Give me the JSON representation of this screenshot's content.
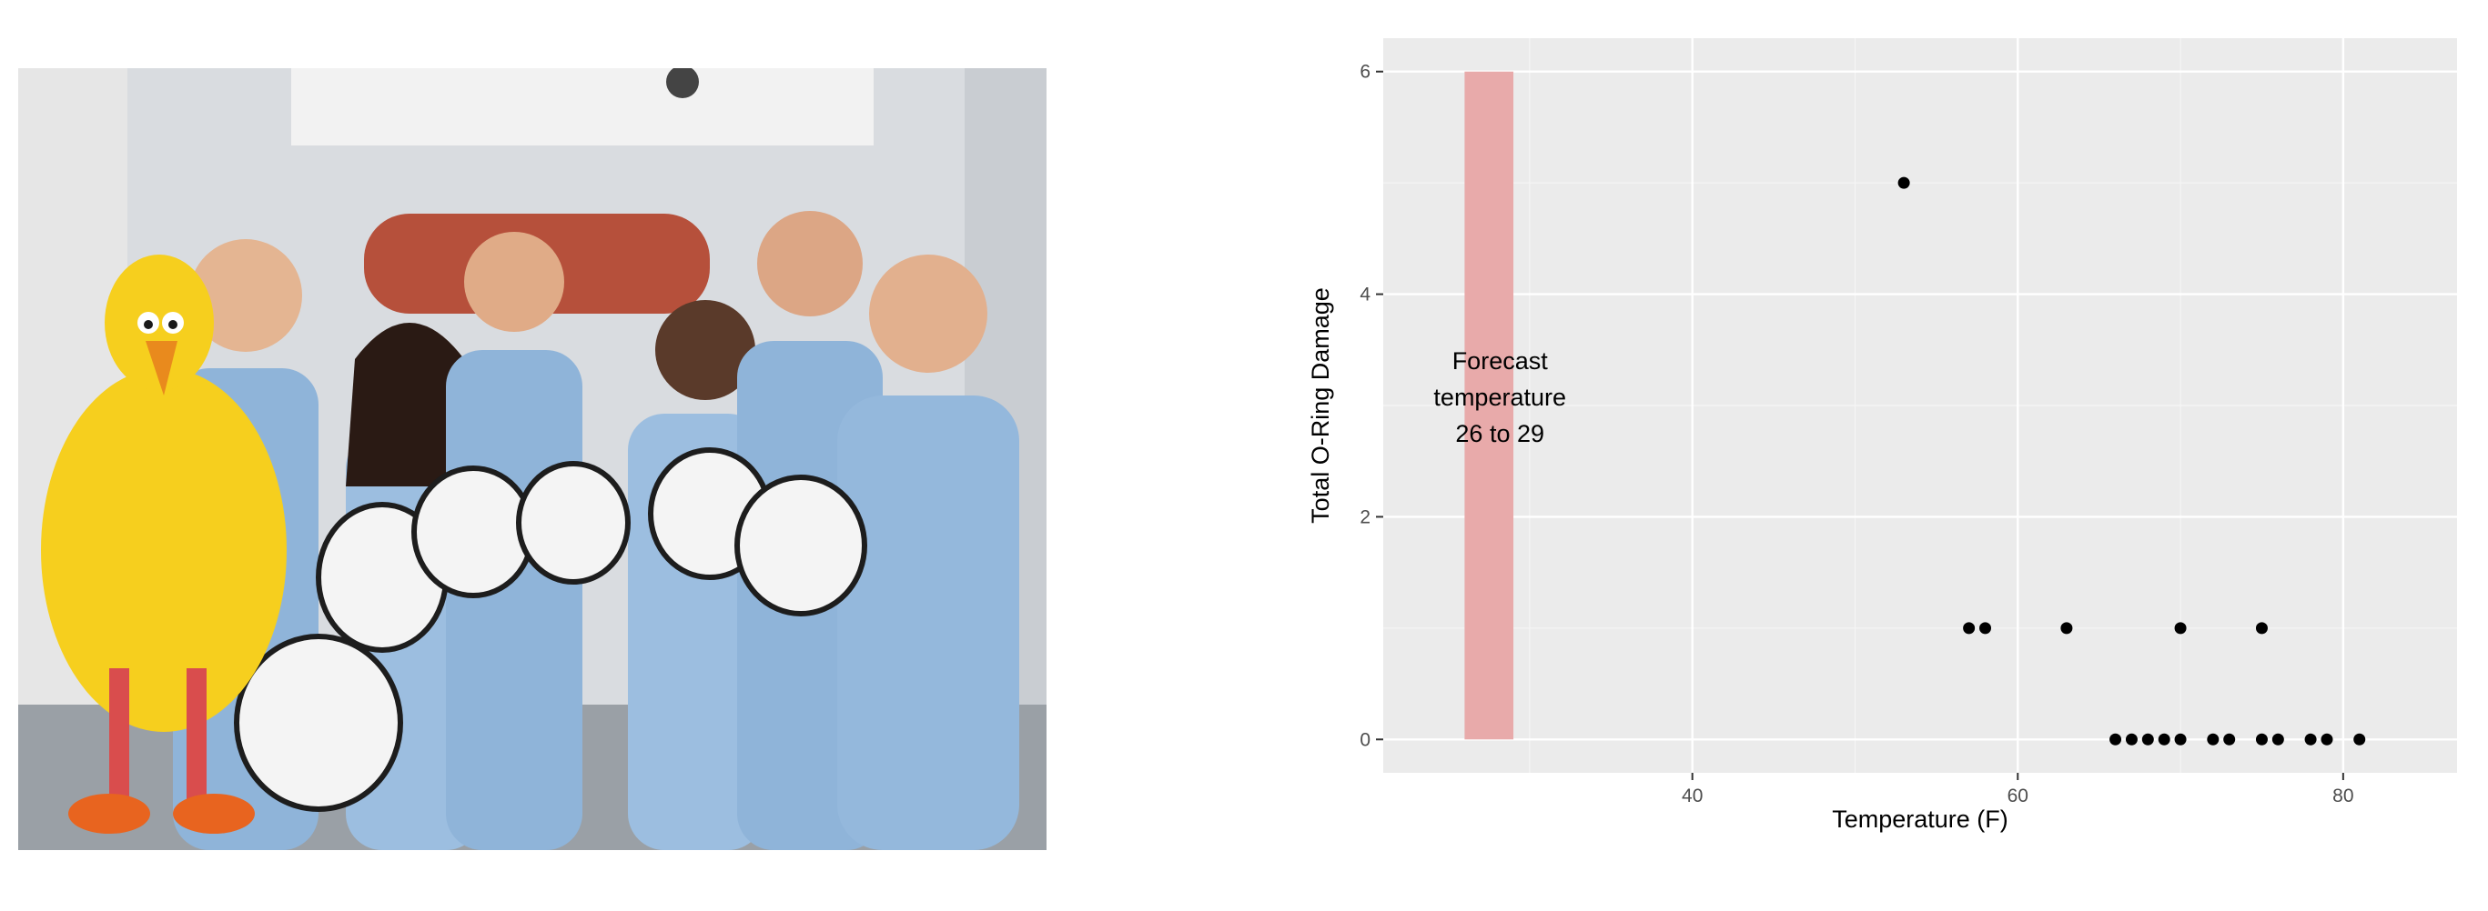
{
  "photo": {
    "description_icon": "crew-photo-illustration",
    "colors": {
      "wall": "#d9dce0",
      "suit": "#8fb4d9",
      "bird": "#f6cf1e",
      "pipe": "#b6503b"
    }
  },
  "chart_data": {
    "type": "scatter",
    "title": "",
    "xlabel": "Temperature (F)",
    "ylabel": "Total O-Ring Damage",
    "xlim": [
      21,
      87
    ],
    "ylim": [
      -0.3,
      6.3
    ],
    "xticks": [
      40,
      60,
      80
    ],
    "yticks": [
      0,
      2,
      4,
      6
    ],
    "grid": true,
    "background": "#ebebeb",
    "point_color": "#000000",
    "points": [
      {
        "x": 53,
        "y": 5
      },
      {
        "x": 57,
        "y": 1
      },
      {
        "x": 58,
        "y": 1
      },
      {
        "x": 63,
        "y": 1
      },
      {
        "x": 70,
        "y": 1
      },
      {
        "x": 75,
        "y": 1
      },
      {
        "x": 66,
        "y": 0
      },
      {
        "x": 67,
        "y": 0
      },
      {
        "x": 68,
        "y": 0
      },
      {
        "x": 69,
        "y": 0
      },
      {
        "x": 70,
        "y": 0
      },
      {
        "x": 72,
        "y": 0
      },
      {
        "x": 73,
        "y": 0
      },
      {
        "x": 75,
        "y": 0
      },
      {
        "x": 76,
        "y": 0
      },
      {
        "x": 78,
        "y": 0
      },
      {
        "x": 79,
        "y": 0
      },
      {
        "x": 81,
        "y": 0
      }
    ],
    "highlight": {
      "xmin": 26,
      "xmax": 29,
      "ymin": 0,
      "ymax": 6,
      "color": "#e8aaaa"
    },
    "annotation": [
      "Forecast",
      "temperature",
      "26 to 29"
    ]
  }
}
